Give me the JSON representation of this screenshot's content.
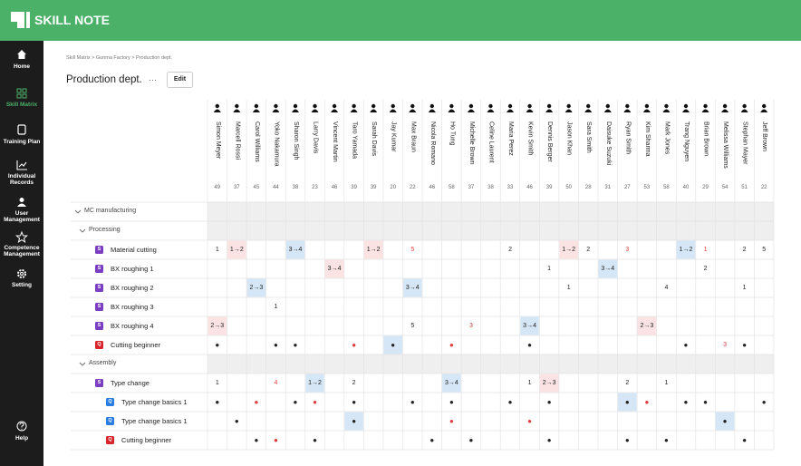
{
  "header": {
    "logo": "SKILL NOTE"
  },
  "sidebar": {
    "items": [
      {
        "label": "Home",
        "icon": "home"
      },
      {
        "label": "Skill Matrix",
        "icon": "grid",
        "active": true
      },
      {
        "label": "Training Plan",
        "icon": "doc"
      },
      {
        "label": "Individual Records",
        "icon": "chart"
      },
      {
        "label": "User Management",
        "icon": "person"
      },
      {
        "label": "Competence Management",
        "icon": "star"
      },
      {
        "label": "Setting",
        "icon": "gear"
      }
    ],
    "help": "Help"
  },
  "breadcrumb": "Skill Matrix > Gunma Factory > Production dept.",
  "page": {
    "title": "Production dept.",
    "more": "···",
    "edit": "Edit"
  },
  "members": [
    {
      "name": "Simon Meyer",
      "count": "49"
    },
    {
      "name": "Marcell Rossi",
      "count": "37"
    },
    {
      "name": "Carol Williams",
      "count": "45"
    },
    {
      "name": "Yoko Nakamura",
      "count": "44"
    },
    {
      "name": "Sharon Singh",
      "count": "38"
    },
    {
      "name": "Larry Davis",
      "count": "23"
    },
    {
      "name": "Vincent Martin",
      "count": "46"
    },
    {
      "name": "Taro Yamada",
      "count": "39"
    },
    {
      "name": "Sarah Davis",
      "count": "39"
    },
    {
      "name": "Jay Kumar",
      "count": "20"
    },
    {
      "name": "Max Braun",
      "count": "22"
    },
    {
      "name": "Nicola Romano",
      "count": "46"
    },
    {
      "name": "Ho Tung",
      "count": "58"
    },
    {
      "name": "Michelle Brown",
      "count": "37"
    },
    {
      "name": "Celine Laurent",
      "count": "38"
    },
    {
      "name": "Maria Perez",
      "count": "33"
    },
    {
      "name": "Kevin Smith",
      "count": "46"
    },
    {
      "name": "Dennis Berger",
      "count": "39"
    },
    {
      "name": "Jason Khan",
      "count": "50"
    },
    {
      "name": "Sara Smith",
      "count": "28"
    },
    {
      "name": "Daisuke Suzuki",
      "count": "31"
    },
    {
      "name": "Ryan Smith",
      "count": "27"
    },
    {
      "name": "Kim Sharma",
      "count": "53"
    },
    {
      "name": "Mark Jones",
      "count": "58"
    },
    {
      "name": "Trang Nguyen",
      "count": "40"
    },
    {
      "name": "Brian Brown",
      "count": "29"
    },
    {
      "name": "Melissa Williams",
      "count": "54"
    },
    {
      "name": "Stephan Mayer",
      "count": "51"
    },
    {
      "name": "Jeff Brown",
      "count": "22"
    }
  ],
  "rows": [
    {
      "type": "group",
      "label": "MC manufacturing",
      "level": 0
    },
    {
      "type": "group",
      "label": "Processing",
      "level": 1
    },
    {
      "type": "skill",
      "label": "Material cutting",
      "level": 2,
      "icon": "S",
      "icon_color": "#7b3ec2",
      "cells": [
        {
          "text": "1"
        },
        {
          "text": "1→2",
          "bg": "#fbe2e3"
        },
        null,
        null,
        {
          "text": "3→4",
          "bg": "#d5e7f6"
        },
        null,
        null,
        null,
        {
          "text": "1→2",
          "bg": "#fbe2e3"
        },
        null,
        {
          "text": "5",
          "color": "#e23b3b"
        },
        null,
        null,
        null,
        null,
        {
          "text": "2"
        },
        null,
        null,
        {
          "text": "1→2",
          "bg": "#fbe2e3"
        },
        {
          "text": "2"
        },
        null,
        {
          "text": "3",
          "color": "#e23b3b"
        },
        null,
        null,
        {
          "text": "1→2",
          "bg": "#d5e7f6"
        },
        {
          "text": "1",
          "color": "#e23b3b"
        },
        null,
        {
          "text": "2"
        },
        {
          "text": "5"
        }
      ]
    },
    {
      "type": "skill",
      "label": "BX roughing 1",
      "level": 2,
      "icon": "S",
      "icon_color": "#7b3ec2",
      "cells": [
        null,
        null,
        null,
        null,
        null,
        null,
        {
          "text": "3→4",
          "bg": "#fbe2e3"
        },
        null,
        null,
        null,
        null,
        null,
        null,
        null,
        null,
        null,
        null,
        {
          "text": "1"
        },
        null,
        null,
        {
          "text": "3→4",
          "bg": "#d5e7f6"
        },
        null,
        null,
        null,
        null,
        {
          "text": "2"
        },
        null,
        null,
        null
      ]
    },
    {
      "type": "skill",
      "label": "BX roughing 2",
      "level": 2,
      "icon": "S",
      "icon_color": "#7b3ec2",
      "cells": [
        null,
        null,
        {
          "text": "2→3",
          "bg": "#d5e7f6"
        },
        null,
        null,
        null,
        null,
        null,
        null,
        null,
        {
          "text": "3→4",
          "bg": "#d5e7f6"
        },
        null,
        null,
        null,
        null,
        null,
        null,
        null,
        {
          "text": "1"
        },
        null,
        null,
        null,
        null,
        {
          "text": "4"
        },
        null,
        null,
        null,
        {
          "text": "1"
        },
        null
      ]
    },
    {
      "type": "skill",
      "label": "BX roughing 3",
      "level": 2,
      "icon": "S",
      "icon_color": "#7b3ec2",
      "cells": [
        null,
        null,
        null,
        {
          "text": "1"
        },
        null,
        null,
        null,
        null,
        null,
        null,
        null,
        null,
        null,
        null,
        null,
        null,
        null,
        null,
        null,
        null,
        null,
        null,
        null,
        null,
        null,
        null,
        null,
        null,
        null
      ]
    },
    {
      "type": "skill",
      "label": "BX roughing 4",
      "level": 2,
      "icon": "S",
      "icon_color": "#7b3ec2",
      "cells": [
        {
          "text": "2→3",
          "bg": "#fbe2e3"
        },
        null,
        null,
        null,
        null,
        null,
        null,
        null,
        null,
        null,
        {
          "text": "5"
        },
        null,
        null,
        {
          "text": "3",
          "color": "#e23b3b"
        },
        null,
        null,
        {
          "text": "3→4",
          "bg": "#d5e7f6"
        },
        null,
        null,
        null,
        null,
        null,
        {
          "text": "2→3",
          "bg": "#fbe2e3"
        },
        null,
        null,
        null,
        null,
        null,
        null
      ]
    },
    {
      "type": "skill",
      "label": "Cutting beginner",
      "level": 2,
      "icon": "Q",
      "icon_color": "#d7262c",
      "cells": [
        {
          "text": "●"
        },
        null,
        null,
        {
          "text": "●"
        },
        {
          "text": "●"
        },
        null,
        null,
        {
          "text": "●",
          "color": "#e23b3b"
        },
        null,
        {
          "text": "●",
          "bg": "#d5e7f6"
        },
        null,
        null,
        {
          "text": "●",
          "color": "#e23b3b"
        },
        null,
        null,
        null,
        {
          "text": "●"
        },
        null,
        null,
        null,
        null,
        null,
        null,
        null,
        {
          "text": "●"
        },
        null,
        {
          "text": "3",
          "color": "#e23b3b"
        },
        {
          "text": "●"
        },
        null
      ]
    },
    {
      "type": "group",
      "label": "Assembly",
      "level": 1
    },
    {
      "type": "skill",
      "label": "Type change",
      "level": 2,
      "icon": "S",
      "icon_color": "#7b3ec2",
      "cells": [
        {
          "text": "1"
        },
        null,
        null,
        {
          "text": "4",
          "color": "#e23b3b"
        },
        null,
        {
          "text": "1→2",
          "bg": "#d5e7f6"
        },
        null,
        {
          "text": "2"
        },
        null,
        null,
        null,
        null,
        {
          "text": "3→4",
          "bg": "#d5e7f6"
        },
        null,
        null,
        null,
        {
          "text": "1"
        },
        {
          "text": "2→3",
          "bg": "#fbe2e3"
        },
        null,
        null,
        null,
        {
          "text": "2"
        },
        null,
        {
          "text": "1"
        },
        null,
        null,
        null,
        null,
        null
      ]
    },
    {
      "type": "skill",
      "label": "Type change basics 1",
      "level": 3,
      "icon": "Q",
      "icon_color": "#2a7de1",
      "cells": [
        {
          "text": "●"
        },
        null,
        {
          "text": "●",
          "color": "#e23b3b"
        },
        null,
        {
          "text": "●"
        },
        {
          "text": "●",
          "color": "#e23b3b"
        },
        null,
        {
          "text": "●"
        },
        null,
        null,
        {
          "text": "●"
        },
        null,
        {
          "text": "●"
        },
        null,
        null,
        {
          "text": "●"
        },
        null,
        {
          "text": "●"
        },
        null,
        null,
        null,
        {
          "text": "●",
          "bg": "#d5e7f6"
        },
        {
          "text": "●",
          "color": "#e23b3b"
        },
        null,
        {
          "text": "●"
        },
        {
          "text": "●"
        },
        null,
        null,
        {
          "text": "●"
        }
      ]
    },
    {
      "type": "skill",
      "label": "Type change basics 1",
      "level": 3,
      "icon": "Q",
      "icon_color": "#2a7de1",
      "cells": [
        null,
        {
          "text": "●"
        },
        null,
        null,
        null,
        null,
        null,
        {
          "text": "●",
          "bg": "#d5e7f6"
        },
        null,
        null,
        null,
        null,
        {
          "text": "●",
          "color": "#e23b3b"
        },
        null,
        null,
        null,
        {
          "text": "●",
          "color": "#e23b3b"
        },
        null,
        null,
        null,
        null,
        null,
        null,
        null,
        null,
        null,
        {
          "text": "●",
          "bg": "#d5e7f6"
        },
        null,
        null
      ]
    },
    {
      "type": "skill",
      "label": "Cutting beginner",
      "level": 3,
      "icon": "Q",
      "icon_color": "#d7262c",
      "cells": [
        null,
        null,
        {
          "text": "●"
        },
        {
          "text": "●",
          "color": "#e23b3b"
        },
        null,
        {
          "text": "●"
        },
        null,
        null,
        null,
        null,
        null,
        {
          "text": "●"
        },
        null,
        {
          "text": "●"
        },
        null,
        null,
        null,
        {
          "text": "●"
        },
        null,
        null,
        null,
        {
          "text": "●"
        },
        null,
        {
          "text": "●"
        },
        null,
        null,
        null,
        {
          "text": "●"
        },
        null
      ]
    }
  ]
}
